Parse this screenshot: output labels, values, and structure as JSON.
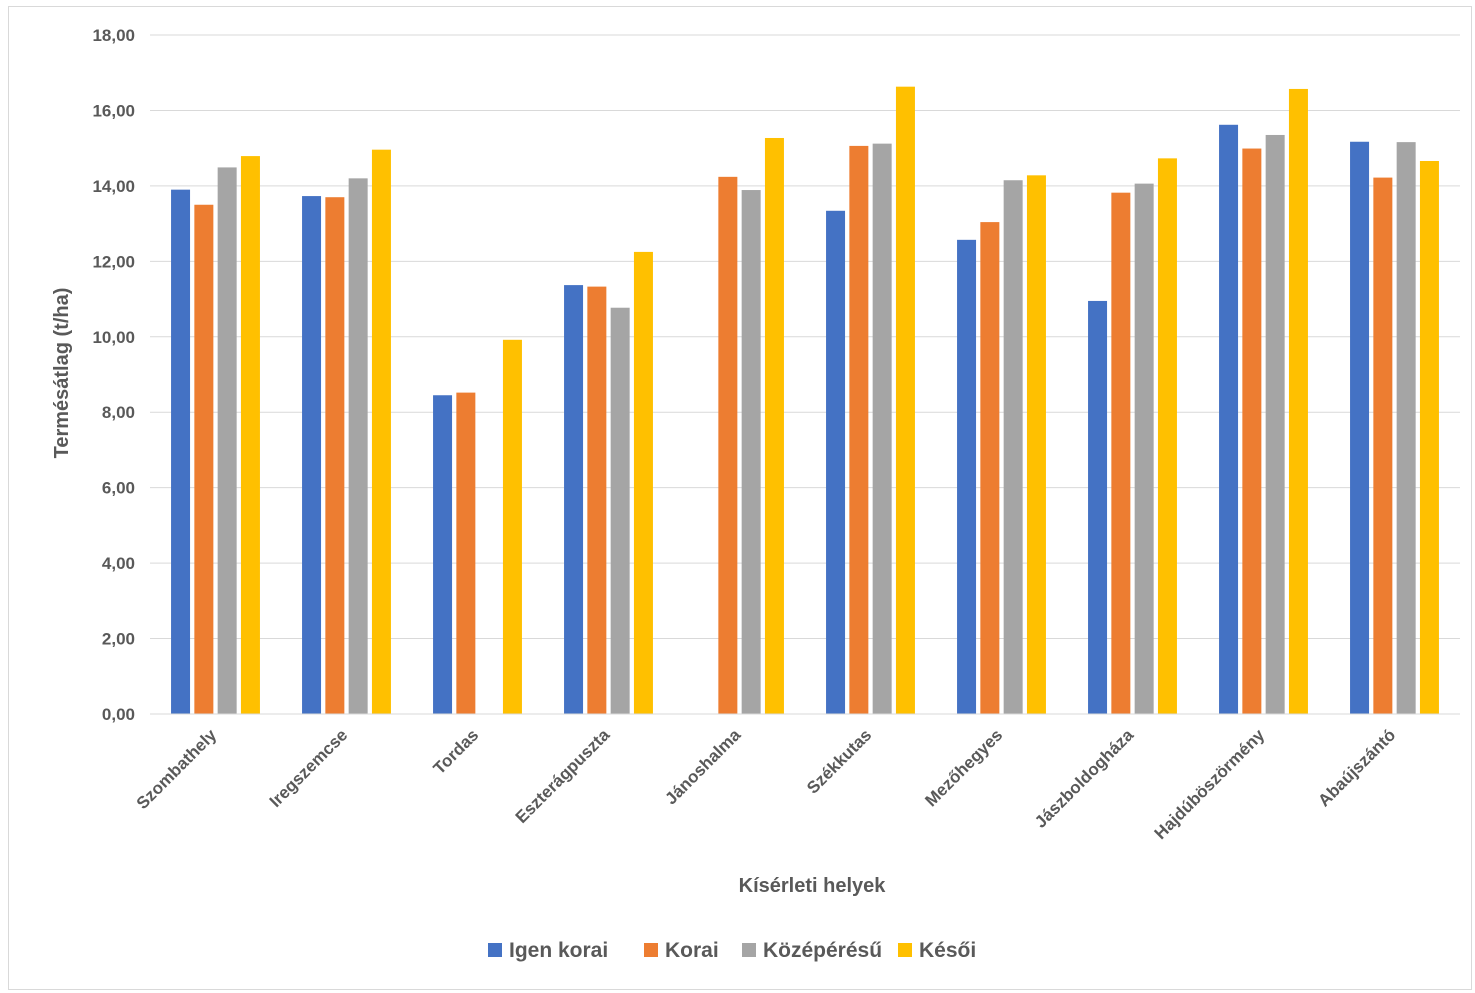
{
  "chart_data": {
    "type": "bar",
    "xlabel": "Kísérleti helyek",
    "ylabel": "Termésátlag (t/ha)",
    "ylim": [
      0,
      18
    ],
    "yticks": [
      "0,00",
      "2,00",
      "4,00",
      "6,00",
      "8,00",
      "10,00",
      "12,00",
      "14,00",
      "16,00",
      "18,00"
    ],
    "grid": true,
    "legend_position": "bottom",
    "categories": [
      "Szombathely",
      "Iregszemcse",
      "Tordas",
      "Eszterágpuszta",
      "Jánoshalma",
      "Székkutas",
      "Mezőhegyes",
      "Jászboldogháza",
      "Hajdúböszörmény",
      "Abaújszántó"
    ],
    "series": [
      {
        "name": "Igen korai",
        "color": "#4472C4",
        "values": [
          13.9,
          13.73,
          8.45,
          11.37,
          null,
          13.34,
          12.57,
          10.95,
          15.62,
          15.17
        ]
      },
      {
        "name": "Korai",
        "color": "#ED7D31",
        "values": [
          13.5,
          13.7,
          8.52,
          11.33,
          14.24,
          15.06,
          13.04,
          13.82,
          14.99,
          14.22
        ]
      },
      {
        "name": "Középérésű",
        "color": "#A5A5A5",
        "values": [
          14.49,
          14.2,
          null,
          10.77,
          13.89,
          15.12,
          14.15,
          14.06,
          15.35,
          15.16
        ]
      },
      {
        "name": "Késői",
        "color": "#FFC000",
        "values": [
          14.79,
          14.96,
          9.92,
          12.25,
          15.27,
          16.63,
          14.28,
          14.73,
          16.57,
          14.66
        ]
      }
    ]
  }
}
